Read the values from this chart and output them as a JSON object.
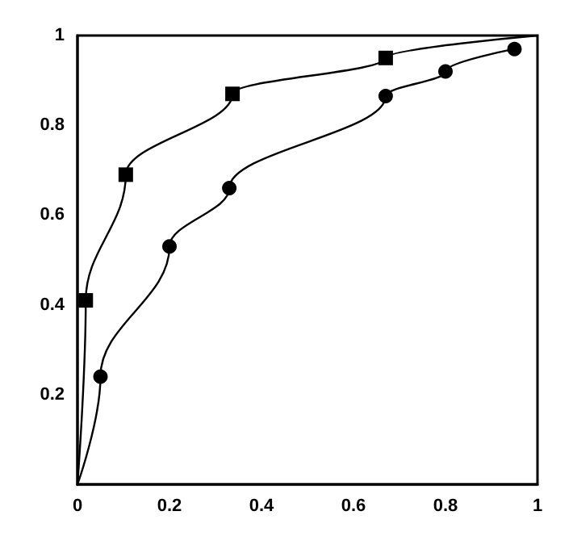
{
  "chart_data": {
    "type": "line",
    "xlim": [
      0,
      1
    ],
    "ylim": [
      0,
      1
    ],
    "xticks": [
      0,
      0.2,
      0.4,
      0.6,
      0.8,
      1
    ],
    "yticks": [
      0.2,
      0.4,
      0.6,
      0.8,
      1
    ],
    "grid": false,
    "series": [
      {
        "color": "#000000",
        "marker": "square",
        "x": [
          0,
          0.018,
          0.105,
          0.337,
          0.67,
          1
        ],
        "values": [
          0,
          0.41,
          0.69,
          0.87,
          0.95,
          1
        ]
      },
      {
        "color": "#000000",
        "marker": "circle",
        "x": [
          0,
          0.05,
          0.2,
          0.33,
          0.67,
          0.8,
          0.95
        ],
        "values": [
          0,
          0.24,
          0.53,
          0.66,
          0.865,
          0.92,
          0.97
        ]
      }
    ]
  }
}
